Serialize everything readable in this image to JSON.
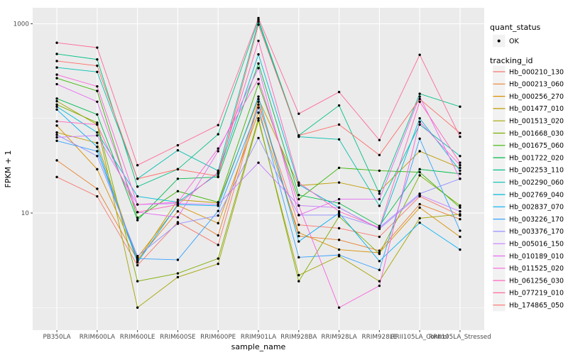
{
  "legend": {
    "quant_status": {
      "title": "quant_status",
      "items": [
        {
          "label": "OK",
          "symbol": "black-point"
        }
      ]
    },
    "tracking": {
      "title": "tracking_id"
    }
  },
  "chart_data": {
    "type": "line",
    "title": "",
    "xlabel": "sample_name",
    "ylabel": "FPKM + 1",
    "x_categories": [
      "PB350LA",
      "RRIM600LA",
      "RRIM600LE",
      "RRIM600SE",
      "RRIM600PE",
      "RRIM901LA",
      "RRIM928BA",
      "RRIM928LA",
      "RRIM928LE",
      "RRII105LA_Control",
      "RRII105LA_Stressed"
    ],
    "y_scale": "log10",
    "y_ticks": [
      {
        "value": 10,
        "label": "10"
      },
      {
        "value": 1000,
        "label": "1000"
      }
    ],
    "y_minor_gridlines": [
      1,
      100
    ],
    "ylim": [
      0.6,
      1500
    ],
    "grid": true,
    "legend_position": "right",
    "panel_bg": "#EBEBEB",
    "grid_color": "#FFFFFF",
    "point_color": "#000000",
    "axis_text_color": "#4D4D4D",
    "series": [
      {
        "name": "Hb_000210_130",
        "color": "#F8766D",
        "values": [
          24,
          15,
          2.8,
          8,
          4.6,
          140,
          7.5,
          6.9,
          5.6,
          15,
          9.4
        ]
      },
      {
        "name": "Hb_000213_060",
        "color": "#EA8331",
        "values": [
          36,
          18,
          3.2,
          10.4,
          5.8,
          150,
          5.7,
          5.2,
          4.0,
          12.4,
          8.6
        ]
      },
      {
        "name": "Hb_000256_270",
        "color": "#D89000",
        "values": [
          84,
          29,
          3.4,
          12,
          7.8,
          115,
          6.2,
          4.1,
          3.8,
          11.4,
          5.6
        ]
      },
      {
        "name": "Hb_001477_010",
        "color": "#C09B00",
        "values": [
          71,
          55,
          3.1,
          13.8,
          12.8,
          160,
          19.5,
          21,
          17,
          45,
          30
        ]
      },
      {
        "name": "Hb_001513_020",
        "color": "#A3A500",
        "values": [
          152,
          86,
          1.0,
          2.1,
          2.9,
          95,
          2.2,
          3.5,
          1.9,
          8.8,
          9.7
        ]
      },
      {
        "name": "Hb_001668_030",
        "color": "#7CAE00",
        "values": [
          140,
          90,
          1.9,
          2.3,
          3.3,
          100,
          1.9,
          9.2,
          3.7,
          25,
          12
        ]
      },
      {
        "name": "Hb_001675_060",
        "color": "#39B600",
        "values": [
          266,
          195,
          8.9,
          17,
          13,
          232,
          14,
          30,
          28,
          27,
          11.4
        ]
      },
      {
        "name": "Hb_001722_020",
        "color": "#00BB4E",
        "values": [
          162,
          110,
          8.4,
          23,
          24,
          380,
          15.5,
          12.7,
          7.3,
          29,
          26
        ]
      },
      {
        "name": "Hb_002253_110",
        "color": "#00C087",
        "values": [
          480,
          420,
          19,
          29,
          68,
          1100,
          66,
          137,
          16,
          182,
          133
        ]
      },
      {
        "name": "Hb_002290_060",
        "color": "#00C0AF",
        "values": [
          345,
          310,
          23,
          46,
          28,
          1050,
          64,
          60,
          11.9,
          86,
          40
        ]
      },
      {
        "name": "Hb_002769_040",
        "color": "#00BCD8",
        "values": [
          133,
          71,
          15,
          13,
          26,
          475,
          20,
          11.4,
          6.8,
          100,
          28
        ]
      },
      {
        "name": "Hb_002837_070",
        "color": "#00B0F6",
        "values": [
          124,
          50,
          3.0,
          12.3,
          11.9,
          170,
          5.0,
          10,
          3.1,
          7.9,
          4.1
        ]
      },
      {
        "name": "Hb_003226_170",
        "color": "#35A2FF",
        "values": [
          58,
          45,
          3.3,
          3.2,
          10.5,
          130,
          3.4,
          3.6,
          2.5,
          61,
          6.5
        ]
      },
      {
        "name": "Hb_003376_170",
        "color": "#9590FF",
        "values": [
          67,
          40,
          3.5,
          7.7,
          9.4,
          62,
          9.5,
          9.5,
          7.0,
          16,
          23
        ]
      },
      {
        "name": "Hb_005016_150",
        "color": "#C77CFF",
        "values": [
          63,
          66,
          12.3,
          12.6,
          12.3,
          34,
          12,
          11.4,
          6.8,
          15.5,
          10.4
        ]
      },
      {
        "name": "Hb_010189_010",
        "color": "#E76BF3",
        "values": [
          230,
          150,
          10.2,
          9,
          45,
          340,
          9.5,
          14,
          14,
          170,
          23
        ]
      },
      {
        "name": "Hb_011525_020",
        "color": "#FA62DB",
        "values": [
          290,
          218,
          12.3,
          13,
          48,
          260,
          12,
          1.0,
          1.7,
          92,
          32
        ]
      },
      {
        "name": "Hb_061256_030",
        "color": "#FF62BC",
        "values": [
          93,
          86,
          10.2,
          12.3,
          27,
          660,
          21,
          10.4,
          7.0,
          150,
          34
        ]
      },
      {
        "name": "Hb_077219_010",
        "color": "#FF6A98",
        "values": [
          630,
          560,
          32,
          52,
          85,
          1150,
          112,
          190,
          59,
          470,
          64
        ]
      },
      {
        "name": "Hb_174865_050",
        "color": "#FF6C67",
        "values": [
          404,
          360,
          23,
          29,
          24.5,
          980,
          66,
          86,
          41,
          160,
          70
        ]
      }
    ]
  }
}
